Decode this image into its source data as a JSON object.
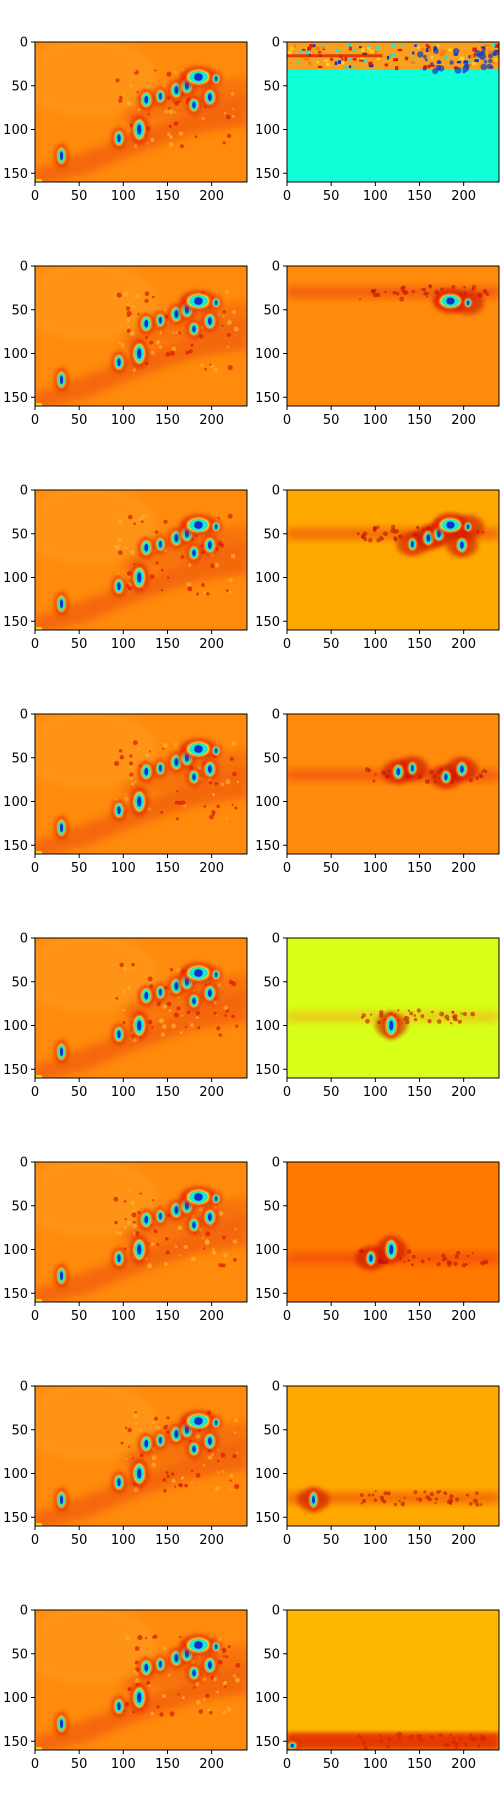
{
  "chart_data": {
    "type": "heatmap",
    "layout": "8 rows x 2 columns of image panels",
    "colormap": "jet",
    "xlim": [
      0,
      240
    ],
    "ylim": [
      160,
      0
    ],
    "x_ticks": [
      0,
      50,
      100,
      150,
      200
    ],
    "y_ticks": [
      0,
      50,
      100,
      150
    ],
    "x_tick_labels": [
      "0",
      "50",
      "100",
      "150",
      "200"
    ],
    "y_tick_labels": [
      "0",
      "50",
      "100",
      "150"
    ],
    "colors": {
      "left_background": "#ff8a0c",
      "dark_red": "#e02000",
      "cyan": "#18e8d8",
      "blue": "#0838c8",
      "yellow": "#f8d818"
    },
    "left_blobs": [
      {
        "x": 30,
        "y": 130,
        "w": 8,
        "h": 18
      },
      {
        "x": 95,
        "y": 110,
        "w": 9,
        "h": 16
      },
      {
        "x": 118,
        "y": 100,
        "w": 11,
        "h": 22
      },
      {
        "x": 126,
        "y": 66,
        "w": 10,
        "h": 16
      },
      {
        "x": 142,
        "y": 62,
        "w": 8,
        "h": 14
      },
      {
        "x": 160,
        "y": 55,
        "w": 10,
        "h": 16
      },
      {
        "x": 172,
        "y": 50,
        "w": 10,
        "h": 16
      },
      {
        "x": 185,
        "y": 40,
        "w": 22,
        "h": 16
      },
      {
        "x": 180,
        "y": 72,
        "w": 9,
        "h": 14
      },
      {
        "x": 198,
        "y": 63,
        "w": 10,
        "h": 16
      },
      {
        "x": 205,
        "y": 42,
        "w": 7,
        "h": 10
      }
    ],
    "right_panels": [
      {
        "row": 0,
        "background": "#10ffd8",
        "band_y": [
          0,
          30
        ]
      },
      {
        "row": 1,
        "background": "#ff8a0c",
        "band_y": 30
      },
      {
        "row": 2,
        "background": "#ffa800",
        "band_y": 50
      },
      {
        "row": 3,
        "background": "#ff8a0c",
        "band_y": 70
      },
      {
        "row": 4,
        "background": "#d8ff18",
        "band_y": 90
      },
      {
        "row": 5,
        "background": "#ff7800",
        "band_y": 110
      },
      {
        "row": 6,
        "background": "#ffa800",
        "band_y": 128
      },
      {
        "row": 7,
        "background": "#ffb800",
        "band_y": 150
      }
    ]
  }
}
